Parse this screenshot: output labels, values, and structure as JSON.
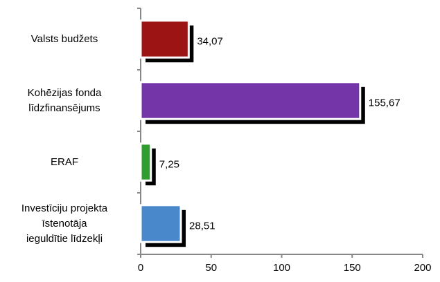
{
  "chart_data": {
    "type": "barh",
    "categories": [
      "Valsts budžets",
      "Kohēzijas fonda\nlīdzfinansējums",
      "ERAF",
      "Investīciju projekta\nīstenotāja\nieguldītie līdzekļi"
    ],
    "values": [
      34.07,
      155.67,
      7.25,
      28.51
    ],
    "value_labels": [
      "34,07",
      "155,67",
      "7,25",
      "28,51"
    ],
    "colors": [
      "#9c1414",
      "#7335a8",
      "#2f9e2f",
      "#4a88cc"
    ],
    "xlim": [
      0,
      200
    ],
    "xticks": [
      0,
      50,
      100,
      150,
      200
    ]
  }
}
